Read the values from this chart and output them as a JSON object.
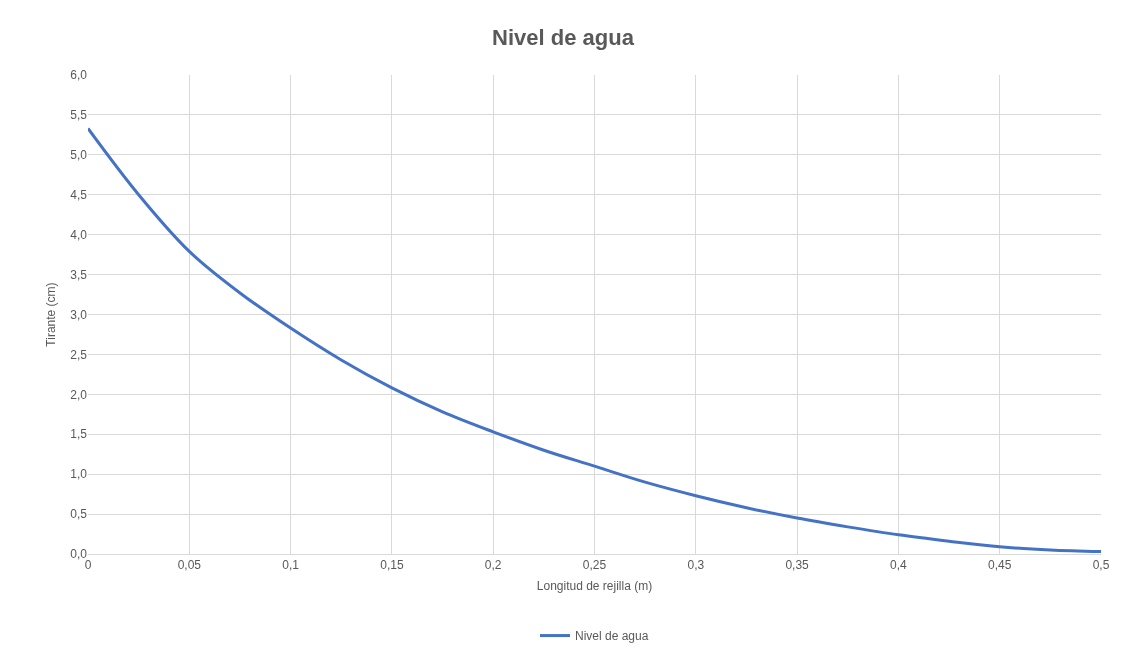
{
  "chart_data": {
    "type": "line",
    "title": "Nivel de agua",
    "xlabel": "Longitud de rejilla (m)",
    "ylabel": "Tirante (cm)",
    "x": [
      0,
      0.025,
      0.05,
      0.075,
      0.1,
      0.125,
      0.15,
      0.175,
      0.2,
      0.225,
      0.25,
      0.275,
      0.3,
      0.325,
      0.35,
      0.375,
      0.4,
      0.425,
      0.45,
      0.475,
      0.5
    ],
    "series": [
      {
        "name": "Nivel de agua",
        "color": "#4472c4",
        "values": [
          5.33,
          4.5,
          3.79,
          3.27,
          2.83,
          2.43,
          2.08,
          1.78,
          1.53,
          1.3,
          1.1,
          0.9,
          0.73,
          0.58,
          0.45,
          0.34,
          0.24,
          0.16,
          0.09,
          0.05,
          0.03
        ]
      }
    ],
    "xlim": [
      0,
      0.5
    ],
    "xticks": [
      0,
      {
        "value": 0.05,
        "label": "0,05"
      },
      {
        "value": 0.1,
        "label": "0,1"
      },
      {
        "value": 0.15,
        "label": "0,15"
      },
      {
        "value": 0.2,
        "label": "0,2"
      },
      {
        "value": 0.25,
        "label": "0,25"
      },
      {
        "value": 0.3,
        "label": "0,3"
      },
      {
        "value": 0.35,
        "label": "0,35"
      },
      {
        "value": 0.4,
        "label": "0,4"
      },
      {
        "value": 0.45,
        "label": "0,45"
      },
      {
        "value": 0.5,
        "label": "0,5"
      }
    ],
    "ylim": [
      0,
      6
    ],
    "yticks": [
      {
        "value": 0,
        "label": "0,0"
      },
      {
        "value": 0.5,
        "label": "0,5"
      },
      {
        "value": 1,
        "label": "1,0"
      },
      {
        "value": 1.5,
        "label": "1,5"
      },
      {
        "value": 2,
        "label": "2,0"
      },
      {
        "value": 2.5,
        "label": "2,5"
      },
      {
        "value": 3,
        "label": "3,0"
      },
      {
        "value": 3.5,
        "label": "3,5"
      },
      {
        "value": 4,
        "label": "4,0"
      },
      {
        "value": 4.5,
        "label": "4,5"
      },
      {
        "value": 5,
        "label": "5,0"
      },
      {
        "value": 5.5,
        "label": "5,5"
      },
      {
        "value": 6,
        "label": "6,0"
      }
    ],
    "grid": true,
    "legend": "bottom",
    "marker": "none",
    "line_style": "solid"
  }
}
